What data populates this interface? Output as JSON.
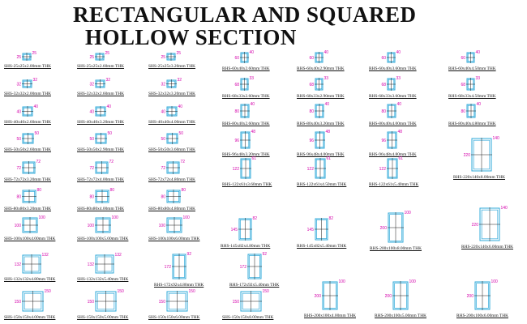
{
  "title": {
    "line1": "RECTANGULAR AND SQUARED",
    "line2": "HOLLOW SECTION"
  },
  "colors": {
    "section": "#2ea8d8",
    "dimension": "#d400aa",
    "text": "#111111",
    "cross": "#1a1a1a"
  },
  "sections": [
    {
      "label": "SHS-25x25x2.00mm THK",
      "b": "25",
      "h": "25"
    },
    {
      "label": "SHS-25x25x2.60mm THK",
      "b": "25",
      "h": "25"
    },
    {
      "label": "SHS-25x25x3.20mm THK",
      "b": "25",
      "h": "25"
    },
    {
      "label": "RHS-60x40x2.60mm THK",
      "b": "40",
      "h": "60"
    },
    {
      "label": "RHS-60x40x2.90mm THK",
      "b": "40",
      "h": "60"
    },
    {
      "label": "RHS-60x40x3.60mm THK",
      "b": "40",
      "h": "60"
    },
    {
      "label": "RHS-60x40x4.50mm THK",
      "b": "40",
      "h": "60"
    },
    {
      "label": "SHS-32x32x2.00mm THK",
      "b": "32",
      "h": "32"
    },
    {
      "label": "SHS-32x32x2.60mm THK",
      "b": "32",
      "h": "32"
    },
    {
      "label": "SHS-32x32x3.20mm THK",
      "b": "32",
      "h": "32"
    },
    {
      "label": "RHS-68x33x2.60mm THK",
      "b": "33",
      "h": "68"
    },
    {
      "label": "RHS-68x33x2.90mm THK",
      "b": "33",
      "h": "68"
    },
    {
      "label": "RHS-68x33x3.60mm THK",
      "b": "33",
      "h": "68"
    },
    {
      "label": "RHS-68x33x4.50mm THK",
      "b": "33",
      "h": "68"
    },
    {
      "label": "SHS-40x40x2.60mm THK",
      "b": "40",
      "h": "40"
    },
    {
      "label": "SHS-40x40x3.20mm THK",
      "b": "40",
      "h": "40"
    },
    {
      "label": "SHS-40x40x4.00mm THK",
      "b": "40",
      "h": "40"
    },
    {
      "label": "RHS-80x40x2.60mm THK",
      "b": "40",
      "h": "80"
    },
    {
      "label": "RHS-80x40x3.20mm THK",
      "b": "40",
      "h": "80"
    },
    {
      "label": "RHS-80x40x4.00mm THK",
      "b": "40",
      "h": "80"
    },
    {
      "label": "RHS-80x40x4.80mm THK",
      "b": "40",
      "h": "80"
    },
    {
      "label": "SHS-50x50x2.60mm THK",
      "b": "50",
      "h": "50"
    },
    {
      "label": "SHS-50x50x2.90mm THK",
      "b": "50",
      "h": "50"
    },
    {
      "label": "SHS-50x50x3.60mm THK",
      "b": "50",
      "h": "50"
    },
    {
      "label": "RHS-96x48x3.20mm THK",
      "b": "48",
      "h": "96"
    },
    {
      "label": "RHS-96x48x4.00mm THK",
      "b": "48",
      "h": "96"
    },
    {
      "label": "RHS-96x48x4.80mm THK",
      "b": "48",
      "h": "96"
    },
    {
      "label": "RHS-220x140x8.00mm THK",
      "b": "140",
      "h": "220"
    },
    {
      "label": "SHS-72x72x3.20mm THK",
      "b": "72",
      "h": "72"
    },
    {
      "label": "SHS-72x72x4.00mm THK",
      "b": "72",
      "h": "72"
    },
    {
      "label": "SHS-72x72x4.80mm THK",
      "b": "72",
      "h": "72"
    },
    {
      "label": "RHS-122x61x3.60mm THK",
      "b": "61",
      "h": "122"
    },
    {
      "label": "RHS-122x61x4.50mm THK",
      "b": "61",
      "h": "122"
    },
    {
      "label": "RHS-122x61x5.40mm THK",
      "b": "61",
      "h": "122"
    },
    {
      "label": "SHS-80x80x3.20mm THK",
      "b": "80",
      "h": "80"
    },
    {
      "label": "SHS-80x80x4.00mm THK",
      "b": "80",
      "h": "80"
    },
    {
      "label": "SHS-80x80x4.80mm THK",
      "b": "80",
      "h": "80"
    },
    {
      "label": "SHS-100x100x4.00mm THK",
      "b": "100",
      "h": "100"
    },
    {
      "label": "SHS-100x100x5.00mm THK",
      "b": "100",
      "h": "100"
    },
    {
      "label": "SHS-100x100x6.00mm THK",
      "b": "100",
      "h": "100"
    },
    {
      "label": "RHS-145x82x4.80mm THK",
      "b": "82",
      "h": "145"
    },
    {
      "label": "RHS-145x82x5.40mm THK",
      "b": "82",
      "h": "145"
    },
    {
      "label": "RHS-200x100x8.00mm THK",
      "b": "100",
      "h": "200"
    },
    {
      "label": "RHS-220x140x6.00mm THK",
      "b": "140",
      "h": "220"
    },
    {
      "label": "SHS-132x132x4.80mm THK",
      "b": "132",
      "h": "132"
    },
    {
      "label": "SHS-132x132x5.40mm THK",
      "b": "132",
      "h": "132"
    },
    {
      "label": "RHS-172x92x4.80mm THK",
      "b": "92",
      "h": "172"
    },
    {
      "label": "RHS-172x92x5.40mm THK",
      "b": "92",
      "h": "172"
    },
    {
      "label": "SHS-150x150x4.00mm THK",
      "b": "150",
      "h": "150"
    },
    {
      "label": "SHS-150x150x5.00mm THK",
      "b": "150",
      "h": "150"
    },
    {
      "label": "SHS-150x150x6.00mm THK",
      "b": "150",
      "h": "150"
    },
    {
      "label": "SHS-150x150x8.00mm THK",
      "b": "150",
      "h": "150"
    },
    {
      "label": "RHS-200x100x4.00mm THK",
      "b": "100",
      "h": "200"
    },
    {
      "label": "RHS-200x100x5.00mm THK",
      "b": "100",
      "h": "200"
    },
    {
      "label": "RHS-200x100x6.00mm THK",
      "b": "100",
      "h": "200"
    }
  ]
}
